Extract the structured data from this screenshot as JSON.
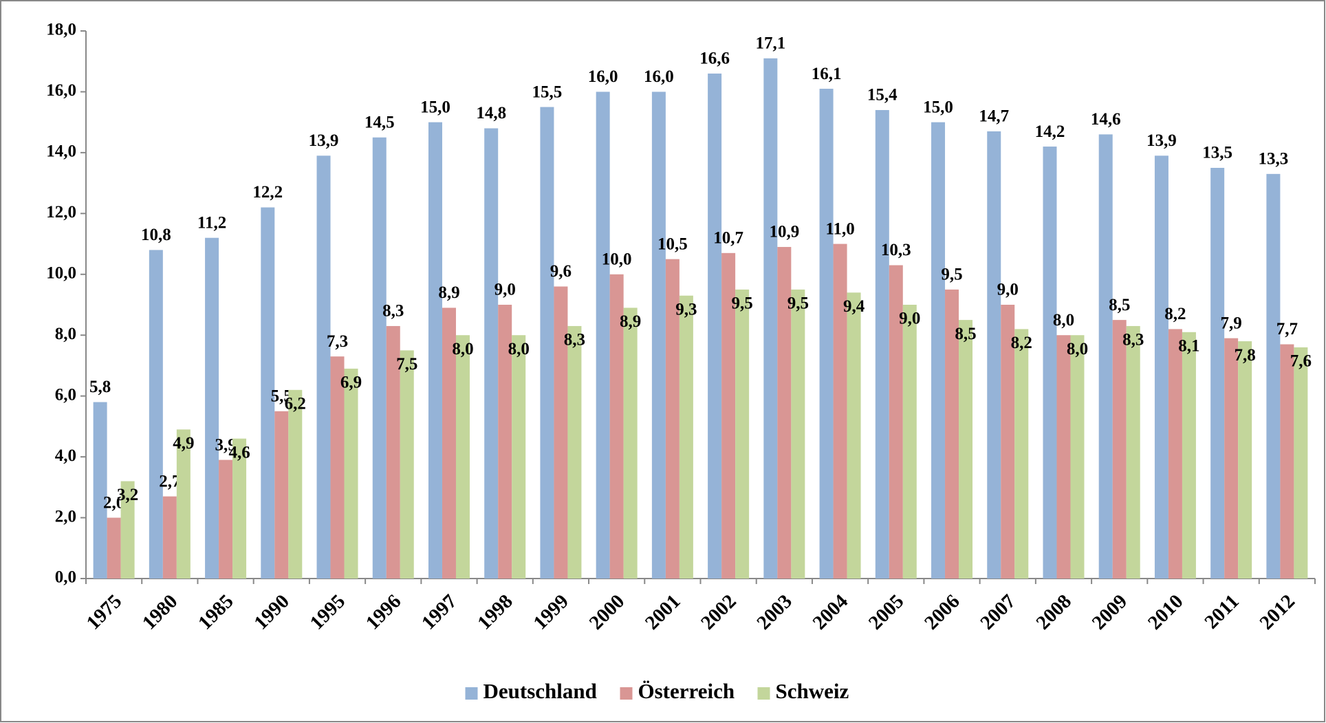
{
  "chart_data": {
    "type": "bar",
    "categories": [
      "1975",
      "1980",
      "1985",
      "1990",
      "1995",
      "1996",
      "1997",
      "1998",
      "1999",
      "2000",
      "2001",
      "2002",
      "2003",
      "2004",
      "2005",
      "2006",
      "2007",
      "2008",
      "2009",
      "2010",
      "2011",
      "2012"
    ],
    "series": [
      {
        "name": "Deutschland",
        "color": "#95b3d7",
        "values": [
          5.8,
          10.8,
          11.2,
          12.2,
          13.9,
          14.5,
          15.0,
          14.8,
          15.5,
          16.0,
          16.0,
          16.6,
          17.1,
          16.1,
          15.4,
          15.0,
          14.7,
          14.2,
          14.6,
          13.9,
          13.5,
          13.3
        ],
        "value_labels": [
          "5,8",
          "10,8",
          "11,2",
          "12,2",
          "13,9",
          "14,5",
          "15,0",
          "14,8",
          "15,5",
          "16,0",
          "16,0",
          "16,6",
          "17,1",
          "16,1",
          "15,4",
          "15,0",
          "14,7",
          "14,2",
          "14,6",
          "13,9",
          "13,5",
          "13,3"
        ]
      },
      {
        "name": "Österreich",
        "color": "#d99694",
        "values": [
          2.0,
          2.7,
          3.9,
          5.5,
          7.3,
          8.3,
          8.9,
          9.0,
          9.6,
          10.0,
          10.5,
          10.7,
          10.9,
          11.0,
          10.3,
          9.5,
          9.0,
          8.0,
          8.5,
          8.2,
          7.9,
          7.7
        ],
        "value_labels": [
          "2,0",
          "2,7",
          "3,9",
          "5,5",
          "7,3",
          "8,3",
          "8,9",
          "9,0",
          "9,6",
          "10,0",
          "10,5",
          "10,7",
          "10,9",
          "11,0",
          "10,3",
          "9,5",
          "9,0",
          "8,0",
          "8,5",
          "8,2",
          "7,9",
          "7,7"
        ]
      },
      {
        "name": "Schweiz",
        "color": "#c3d69b",
        "values": [
          3.2,
          4.9,
          4.6,
          6.2,
          6.9,
          7.5,
          8.0,
          8.0,
          8.3,
          8.9,
          9.3,
          9.5,
          9.5,
          9.4,
          9.0,
          8.5,
          8.2,
          8.0,
          8.3,
          8.1,
          7.8,
          7.6
        ],
        "value_labels": [
          "3,2",
          "4,9",
          "4,6",
          "6,2",
          "6,9",
          "7,5",
          "8,0",
          "8,0",
          "8,3",
          "8,9",
          "9,3",
          "9,5",
          "9,5",
          "9,4",
          "9,0",
          "8,5",
          "8,2",
          "8,0",
          "8,3",
          "8,1",
          "7,8",
          "7,6"
        ]
      }
    ],
    "ylim": [
      0,
      18
    ],
    "yticks": [
      {
        "value": 0,
        "label": "0,0"
      },
      {
        "value": 2,
        "label": "2,0"
      },
      {
        "value": 4,
        "label": "4,0"
      },
      {
        "value": 6,
        "label": "6,0"
      },
      {
        "value": 8,
        "label": "8,0"
      },
      {
        "value": 10,
        "label": "10,0"
      },
      {
        "value": 12,
        "label": "12,0"
      },
      {
        "value": 14,
        "label": "14,0"
      },
      {
        "value": 16,
        "label": "16,0"
      },
      {
        "value": 18,
        "label": "18,0"
      }
    ],
    "legend": "bottom"
  }
}
